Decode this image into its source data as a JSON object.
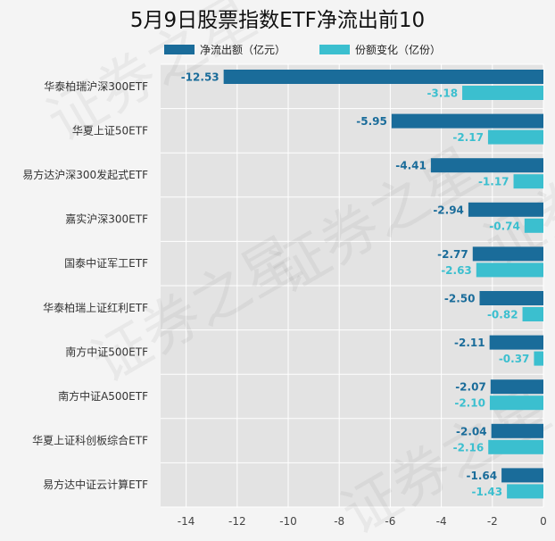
{
  "chart_data": {
    "type": "bar",
    "orientation": "horizontal",
    "title": "5月9日股票指数ETF净流出前10",
    "categories": [
      "华泰柏瑞沪深300ETF",
      "华夏上证50ETF",
      "易方达沪深300发起式ETF",
      "嘉实沪深300ETF",
      "国泰中证军工ETF",
      "华泰柏瑞上证红利ETF",
      "南方中证500ETF",
      "南方中证A500ETF",
      "华夏上证科创板综合ETF",
      "易方达中证云计算ETF"
    ],
    "series": [
      {
        "name": "净流出额（亿元）",
        "color": "#1a6c9a",
        "values": [
          -12.53,
          -5.95,
          -4.41,
          -2.94,
          -2.77,
          -2.5,
          -2.11,
          -2.07,
          -2.04,
          -1.64
        ],
        "labels": [
          "-12.53",
          "-5.95",
          "-4.41",
          "-2.94",
          "-2.77",
          "-2.50",
          "-2.11",
          "-2.07",
          "-2.04",
          "-1.64"
        ]
      },
      {
        "name": "份额变化（亿份）",
        "color": "#3bbfcf",
        "values": [
          -3.18,
          -2.17,
          -1.17,
          -0.74,
          -2.63,
          -0.82,
          -0.37,
          -2.1,
          -2.16,
          -1.43
        ],
        "labels": [
          "-3.18",
          "-2.17",
          "-1.17",
          "-0.74",
          "-2.63",
          "-0.82",
          "-0.37",
          "-2.10",
          "-2.16",
          "-1.43"
        ]
      }
    ],
    "xlim": [
      -15,
      0
    ],
    "xticks": [
      -14,
      -12,
      -10,
      -8,
      -6,
      -4,
      -2,
      0
    ],
    "xtick_labels": [
      "-14",
      "-12",
      "-10",
      "-8",
      "-6",
      "-4",
      "-2",
      "0"
    ],
    "grid": true,
    "legend_position": "top",
    "watermark": "证券之星"
  }
}
